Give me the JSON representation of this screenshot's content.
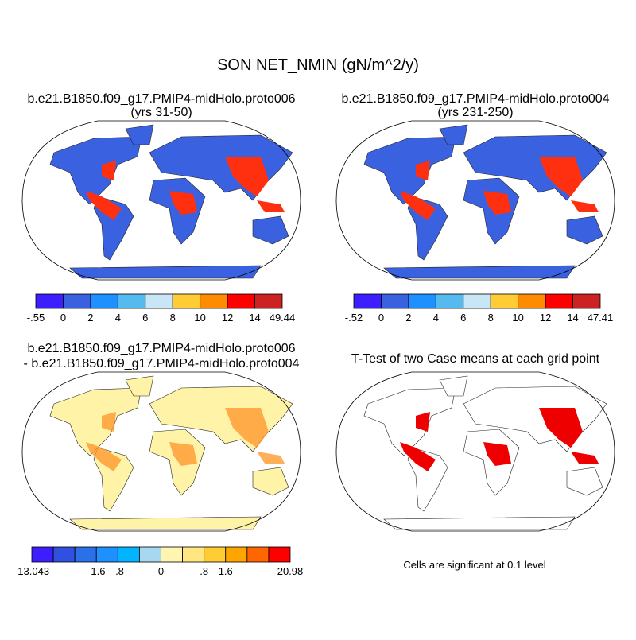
{
  "title": "SON NET_NMIN (gN/m^2/y)",
  "panels": [
    {
      "title": [
        "b.e21.B1850.f09_g17.PMIP4-midHolo.proto006",
        "(yrs 31-50)"
      ],
      "colorbar": {
        "colors": [
          "#3c1eff",
          "#3a62e0",
          "#1e90ff",
          "#55bbee",
          "#c8e6f5",
          "#ffcc33",
          "#ff8c00",
          "#ff0000",
          "#cc2222"
        ],
        "labels": [
          "-.55",
          "0",
          "2",
          "4",
          "6",
          "8",
          "10",
          "12",
          "14",
          "49.44"
        ]
      }
    },
    {
      "title": [
        "b.e21.B1850.f09_g17.PMIP4-midHolo.proto004",
        "(yrs 231-250)"
      ],
      "colorbar": {
        "colors": [
          "#3c1eff",
          "#3a62e0",
          "#1e90ff",
          "#55bbee",
          "#c8e6f5",
          "#ffcc33",
          "#ff8c00",
          "#ff0000",
          "#cc2222"
        ],
        "labels": [
          "-.52",
          "0",
          "2",
          "4",
          "6",
          "8",
          "10",
          "12",
          "14",
          "47.41"
        ]
      }
    },
    {
      "title": [
        "b.e21.B1850.f09_g17.PMIP4-midHolo.proto006",
        "- b.e21.B1850.f09_g17.PMIP4-midHolo.proto004"
      ],
      "colorbar": {
        "colors": [
          "#3c1eff",
          "#2f50e0",
          "#2a70e8",
          "#1e90ff",
          "#00b4ff",
          "#a8d8f0",
          "#fff5b0",
          "#ffe680",
          "#ffcc33",
          "#ffa500",
          "#ff6600",
          "#ff0000"
        ],
        "labels": [
          "-13.043",
          null,
          null,
          "-1.6",
          "-.8",
          null,
          "0",
          null,
          ".8",
          "1.6",
          null,
          null,
          "20.98"
        ]
      }
    },
    {
      "title": [
        "T-Test of two Case means at each grid point"
      ],
      "note": "Cells are significant at 0.1 level"
    }
  ]
}
